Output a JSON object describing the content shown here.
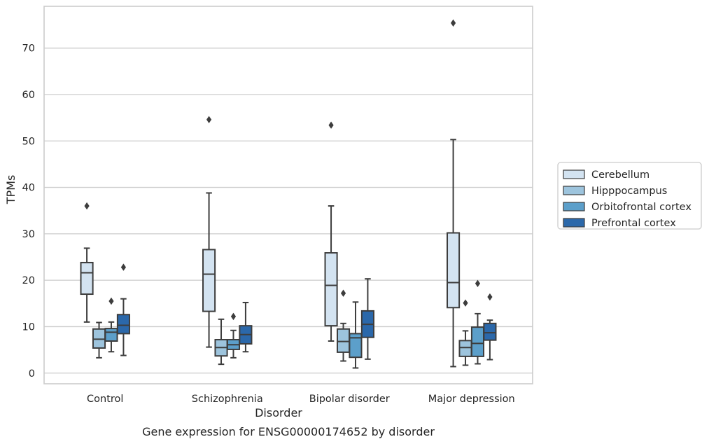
{
  "chart_data": {
    "type": "box",
    "title": "",
    "caption": "Gene expression for ENSG00000174652 by disorder",
    "xlabel": "Disorder",
    "ylabel": "TPMs",
    "ylim": [
      -2.3,
      79
    ],
    "yticks": [
      0,
      10,
      20,
      30,
      40,
      50,
      60,
      70
    ],
    "grid": "horizontal",
    "legend_position": "right",
    "categories": [
      "Control",
      "Schizophrenia",
      "Bipolar disorder",
      "Major depression"
    ],
    "series": [
      {
        "name": "Cerebellum",
        "color": "#d3e3f1",
        "boxes": [
          {
            "whisker_low": 11.0,
            "q1": 17.0,
            "median": 21.6,
            "q3": 23.8,
            "whisker_high": 26.9,
            "outliers": [
              36.0
            ]
          },
          {
            "whisker_low": 5.6,
            "q1": 13.3,
            "median": 21.3,
            "q3": 26.6,
            "whisker_high": 38.8,
            "outliers": [
              54.6
            ]
          },
          {
            "whisker_low": 6.9,
            "q1": 10.2,
            "median": 18.9,
            "q3": 25.9,
            "whisker_high": 36.0,
            "outliers": [
              53.4
            ]
          },
          {
            "whisker_low": 1.4,
            "q1": 14.1,
            "median": 19.5,
            "q3": 30.2,
            "whisker_high": 50.3,
            "outliers": [
              75.4
            ]
          }
        ]
      },
      {
        "name": "Hipppocampus",
        "color": "#9dc4dd",
        "boxes": [
          {
            "whisker_low": 3.3,
            "q1": 5.4,
            "median": 7.3,
            "q3": 9.5,
            "whisker_high": 10.9,
            "outliers": []
          },
          {
            "whisker_low": 1.9,
            "q1": 3.7,
            "median": 5.5,
            "q3": 7.2,
            "whisker_high": 11.6,
            "outliers": []
          },
          {
            "whisker_low": 2.6,
            "q1": 4.5,
            "median": 6.8,
            "q3": 9.5,
            "whisker_high": 10.7,
            "outliers": [
              17.2
            ]
          },
          {
            "whisker_low": 1.7,
            "q1": 3.6,
            "median": 5.5,
            "q3": 7.0,
            "whisker_high": 9.1,
            "outliers": [
              15.1
            ]
          }
        ]
      },
      {
        "name": "Orbitofrontal cortex",
        "color": "#5c9fca",
        "boxes": [
          {
            "whisker_low": 4.6,
            "q1": 6.9,
            "median": 8.8,
            "q3": 9.6,
            "whisker_high": 11.0,
            "outliers": [
              15.5
            ]
          },
          {
            "whisker_low": 3.3,
            "q1": 5.1,
            "median": 6.1,
            "q3": 7.2,
            "whisker_high": 9.2,
            "outliers": [
              12.2
            ]
          },
          {
            "whisker_low": 1.1,
            "q1": 3.4,
            "median": 7.6,
            "q3": 8.5,
            "whisker_high": 15.3,
            "outliers": []
          },
          {
            "whisker_low": 2.0,
            "q1": 3.6,
            "median": 6.4,
            "q3": 9.9,
            "whisker_high": 12.8,
            "outliers": [
              19.3
            ]
          }
        ]
      },
      {
        "name": "Prefrontal cortex",
        "color": "#2b68aa",
        "boxes": [
          {
            "whisker_low": 3.8,
            "q1": 8.5,
            "median": 10.3,
            "q3": 12.6,
            "whisker_high": 16.0,
            "outliers": [
              22.8
            ]
          },
          {
            "whisker_low": 4.6,
            "q1": 6.3,
            "median": 8.3,
            "q3": 10.2,
            "whisker_high": 15.2,
            "outliers": []
          },
          {
            "whisker_low": 3.0,
            "q1": 7.7,
            "median": 10.5,
            "q3": 13.4,
            "whisker_high": 20.3,
            "outliers": []
          },
          {
            "whisker_low": 2.9,
            "q1": 7.1,
            "median": 8.7,
            "q3": 10.7,
            "whisker_high": 11.4,
            "outliers": [
              16.4
            ]
          }
        ]
      }
    ]
  }
}
